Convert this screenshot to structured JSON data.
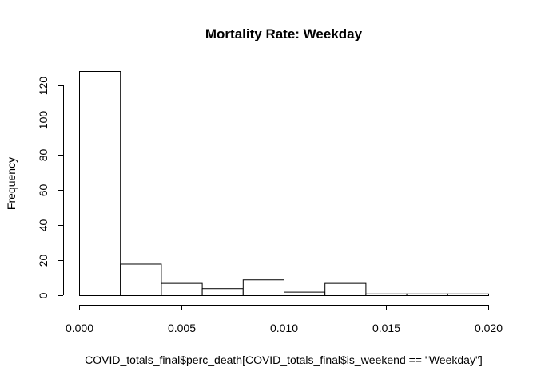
{
  "chart_data": {
    "type": "bar",
    "title": "Mortality Rate: Weekday",
    "xlabel": "COVID_totals_final$perc_death[COVID_totals_final$is_weekend == \"Weekday\"]",
    "ylabel": "Frequency",
    "bin_edges": [
      0.0,
      0.002,
      0.004,
      0.006,
      0.008,
      0.01,
      0.012,
      0.014,
      0.016,
      0.018,
      0.02
    ],
    "values": [
      128,
      18,
      7,
      4,
      9,
      2,
      7,
      1,
      1,
      1
    ],
    "xlim": [
      0,
      0.02
    ],
    "ylim": [
      0,
      128
    ],
    "x_ticks": [
      0.0,
      0.005,
      0.01,
      0.015,
      0.02
    ],
    "x_tick_labels": [
      "0.000",
      "0.005",
      "0.010",
      "0.015",
      "0.020"
    ],
    "y_ticks": [
      0,
      20,
      40,
      60,
      80,
      100,
      120
    ],
    "y_tick_labels": [
      "0",
      "20",
      "40",
      "60",
      "80",
      "100",
      "120"
    ],
    "grid": false
  }
}
